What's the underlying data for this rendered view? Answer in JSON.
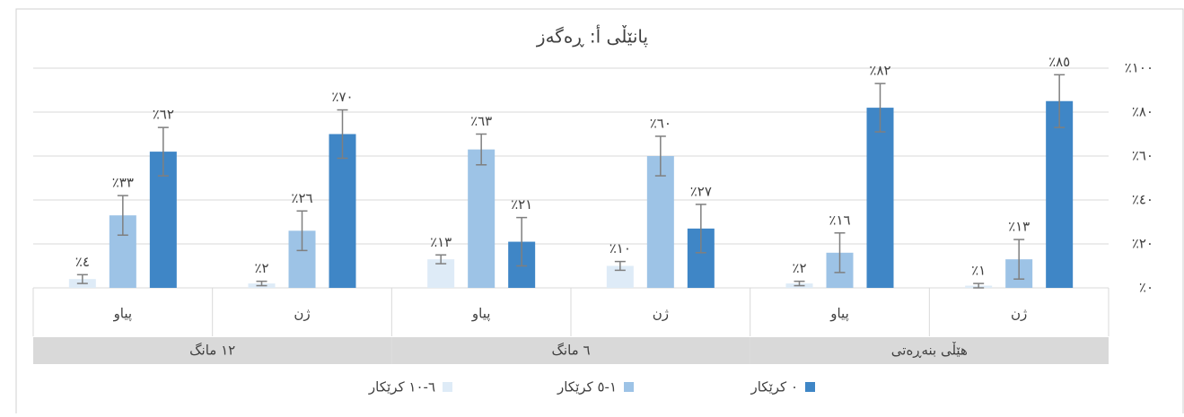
{
  "chart_data": {
    "type": "bar",
    "title": "پانێڵی أ: ڕەگەز",
    "categories": [
      "ژن",
      "پیاو",
      "ژن",
      "پیاو",
      "ژن",
      "پیاو"
    ],
    "groups": [
      "هێڵی بنەڕەتی",
      "٦ مانگ",
      "١٢ مانگ"
    ],
    "series": [
      {
        "name": "٠ کرێکار",
        "color": "#3f86c6",
        "values": [
          85,
          82,
          27,
          21,
          70,
          62
        ],
        "errors": [
          12,
          11,
          11,
          11,
          11,
          11
        ],
        "value_labels": [
          "٪٨٥",
          "٪٨٢",
          "٪٢٧",
          "٪٢١",
          "٪٧٠",
          "٪٦٢"
        ]
      },
      {
        "name": "١-٥ کرێکار",
        "color": "#9dc3e6",
        "values": [
          13,
          16,
          60,
          63,
          26,
          33
        ],
        "errors": [
          9,
          9,
          9,
          7,
          9,
          9
        ],
        "value_labels": [
          "٪١٣",
          "٪١٦",
          "٪٦٠",
          "٪٦٣",
          "٪٢٦",
          "٪٣٣"
        ]
      },
      {
        "name": "٦-١٠ کرێکار",
        "color": "#deebf7",
        "values": [
          1,
          2,
          10,
          13,
          2,
          4
        ],
        "errors": [
          1,
          1,
          2,
          2,
          1,
          2
        ],
        "value_labels": [
          "٪١",
          "٪٢",
          "٪١٠",
          "٪١٣",
          "٪٢",
          "٪٤"
        ]
      }
    ],
    "ylim": [
      0,
      100
    ],
    "yticks": [
      {
        "value": 0,
        "label": "٪٠"
      },
      {
        "value": 20,
        "label": "٪٢٠"
      },
      {
        "value": 40,
        "label": "٪٤٠"
      },
      {
        "value": 60,
        "label": "٪٦٠"
      },
      {
        "value": 80,
        "label": "٪٨٠"
      },
      {
        "value": 100,
        "label": "٪١٠٠"
      }
    ],
    "grid": true,
    "x_reversed": true,
    "legend": "bottom"
  }
}
